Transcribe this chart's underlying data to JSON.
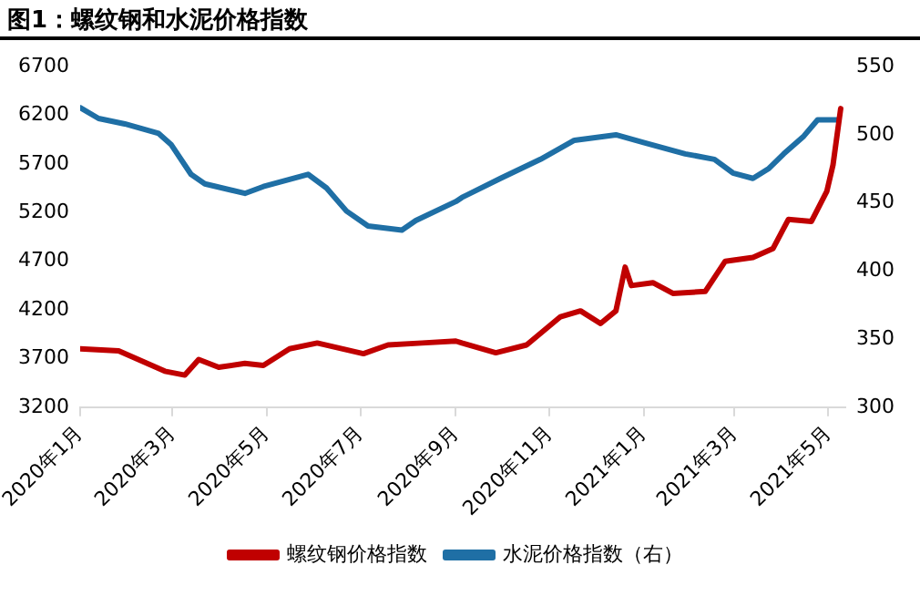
{
  "chart_data": {
    "type": "line",
    "title": "图1：螺纹钢和水泥价格指数",
    "xlim": [
      "2020-01-01",
      "2021-05-12"
    ],
    "xticks": [
      {
        "value": "2020-01-01",
        "label": "2020年1月"
      },
      {
        "value": "2020-03-01",
        "label": "2020年3月"
      },
      {
        "value": "2020-05-01",
        "label": "2020年5月"
      },
      {
        "value": "2020-07-01",
        "label": "2020年7月"
      },
      {
        "value": "2020-09-01",
        "label": "2020年9月"
      },
      {
        "value": "2020-11-01",
        "label": "2020年11月"
      },
      {
        "value": "2021-01-01",
        "label": "2021年1月"
      },
      {
        "value": "2021-03-01",
        "label": "2021年3月"
      },
      {
        "value": "2021-05-01",
        "label": "2021年5月"
      }
    ],
    "ylim": [
      3200,
      6700
    ],
    "yticks": [
      3200,
      3700,
      4200,
      4700,
      5200,
      5700,
      6200,
      6700
    ],
    "y2lim": [
      300,
      550
    ],
    "y2ticks": [
      300,
      350,
      400,
      450,
      500,
      550
    ],
    "grid": false,
    "legend": "bottom",
    "marker": "none",
    "line_style": "solid",
    "series": [
      {
        "name": "螺纹钢价格指数",
        "color": "#c00000",
        "x": [
          "2020-01-01",
          "2020-01-26",
          "2020-02-25",
          "2020-03-09",
          "2020-03-18",
          "2020-03-31",
          "2020-04-17",
          "2020-04-29",
          "2020-05-16",
          "2020-06-03",
          "2020-07-03",
          "2020-07-19",
          "2020-08-10",
          "2020-09-01",
          "2020-09-05",
          "2020-09-27",
          "2020-10-17",
          "2020-11-08",
          "2020-11-21",
          "2020-12-04",
          "2020-12-14",
          "2020-12-20",
          "2020-12-24",
          "2021-01-07",
          "2021-01-20",
          "2021-02-10",
          "2021-02-23",
          "2021-03-13",
          "2021-03-26",
          "2021-04-05",
          "2021-04-20",
          "2021-04-30",
          "2021-05-04",
          "2021-05-09"
        ],
        "values": [
          3800,
          3780,
          3570,
          3530,
          3690,
          3610,
          3650,
          3630,
          3800,
          3860,
          3750,
          3840,
          3860,
          3880,
          3860,
          3760,
          3840,
          4130,
          4190,
          4060,
          4190,
          4640,
          4450,
          4480,
          4370,
          4390,
          4700,
          4740,
          4830,
          5130,
          5110,
          5420,
          5690,
          6270
        ]
      },
      {
        "name": "水泥价格指数（右）",
        "color": "#1f6fa5",
        "axis": "y2",
        "x": [
          "2020-01-01",
          "2020-01-13",
          "2020-01-30",
          "2020-02-21",
          "2020-02-29",
          "2020-03-13",
          "2020-03-22",
          "2020-04-17",
          "2020-04-29",
          "2020-05-28",
          "2020-06-09",
          "2020-06-22",
          "2020-07-06",
          "2020-07-28",
          "2020-08-06",
          "2020-09-01",
          "2020-09-05",
          "2020-09-30",
          "2020-10-26",
          "2020-11-17",
          "2020-12-14",
          "2021-01-02",
          "2021-01-28",
          "2021-02-16",
          "2021-02-28",
          "2021-03-13",
          "2021-03-23",
          "2021-04-02",
          "2021-04-15",
          "2021-04-24",
          "2021-05-07"
        ],
        "values": [
          520,
          512,
          508,
          501,
          493,
          471,
          464,
          457,
          462,
          471,
          461,
          444,
          433,
          430,
          437,
          451,
          454,
          468,
          482,
          496,
          500,
          494,
          486,
          482,
          472,
          468,
          475,
          486,
          499,
          511,
          511
        ]
      }
    ]
  }
}
